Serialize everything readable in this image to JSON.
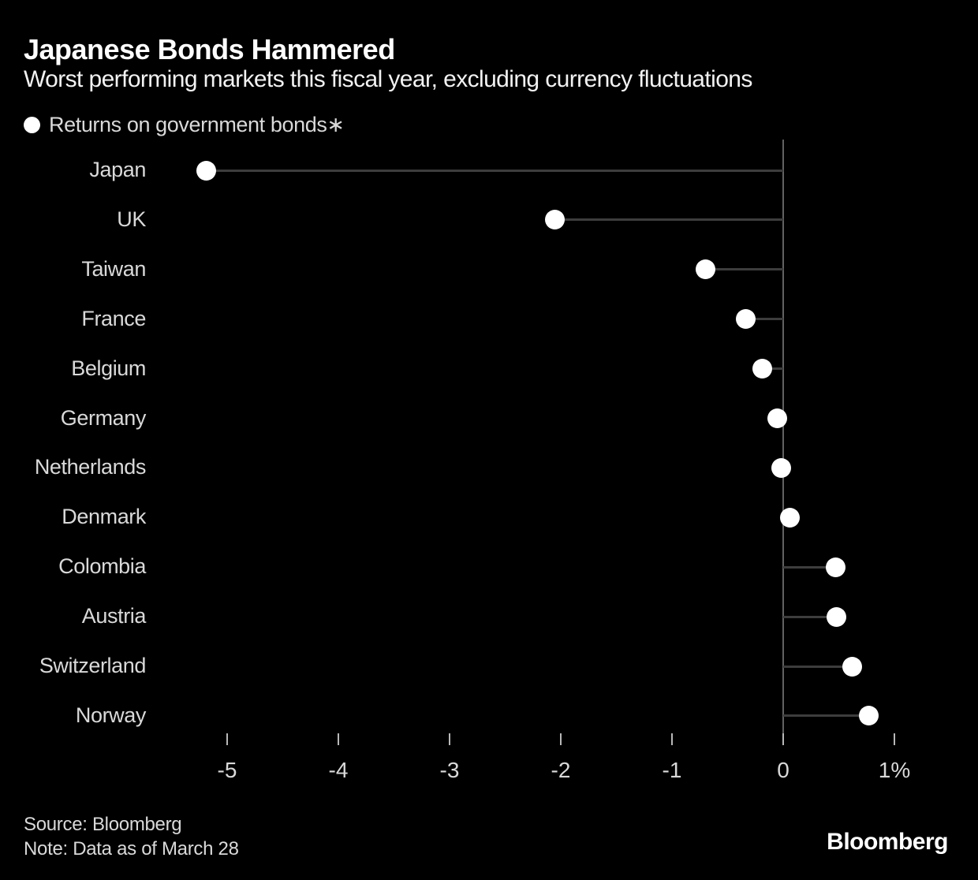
{
  "header": {
    "title": "Japanese Bonds Hammered",
    "subtitle": "Worst performing markets this fiscal year, excluding currency fluctuations"
  },
  "legend": {
    "label": "Returns on government bonds∗"
  },
  "chart_data": {
    "type": "scatter",
    "variant": "horizontal-lollipop",
    "title": "Japanese Bonds Hammered",
    "subtitle": "Worst performing markets this fiscal year, excluding currency fluctuations",
    "series_label": "Returns on government bonds∗",
    "unit": "%",
    "categories": [
      "Japan",
      "UK",
      "Taiwan",
      "France",
      "Belgium",
      "Germany",
      "Netherlands",
      "Denmark",
      "Colombia",
      "Austria",
      "Switzerland",
      "Norway"
    ],
    "values": [
      -5.19,
      -2.05,
      -0.7,
      -0.34,
      -0.19,
      -0.05,
      -0.02,
      0.06,
      0.47,
      0.48,
      0.62,
      0.77
    ],
    "baseline": 0,
    "xlim": [
      -5.5,
      1.45
    ],
    "x_ticks": [
      -5,
      -4,
      -3,
      -2,
      -1,
      0,
      1
    ],
    "x_tick_labels": [
      "-5",
      "-4",
      "-3",
      "-2",
      "-1",
      "0",
      "1%"
    ],
    "grid": false,
    "legend_position": "top-left"
  },
  "footer": {
    "source": "Source: Bloomberg",
    "note": "Note: Data as of March 28",
    "logo": "Bloomberg"
  },
  "colors": {
    "background": "#000000",
    "title": "#ffffff",
    "subtitle": "#f2f2f2",
    "label": "#d9d9d9",
    "dot": "#ffffff",
    "stem": "#3d3d3d",
    "axis_line": "#616161",
    "tick": "#b8b8b8",
    "tick_label": "#d9d9d9",
    "footer_text": "#d9d9d9",
    "logo": "#ffffff"
  }
}
